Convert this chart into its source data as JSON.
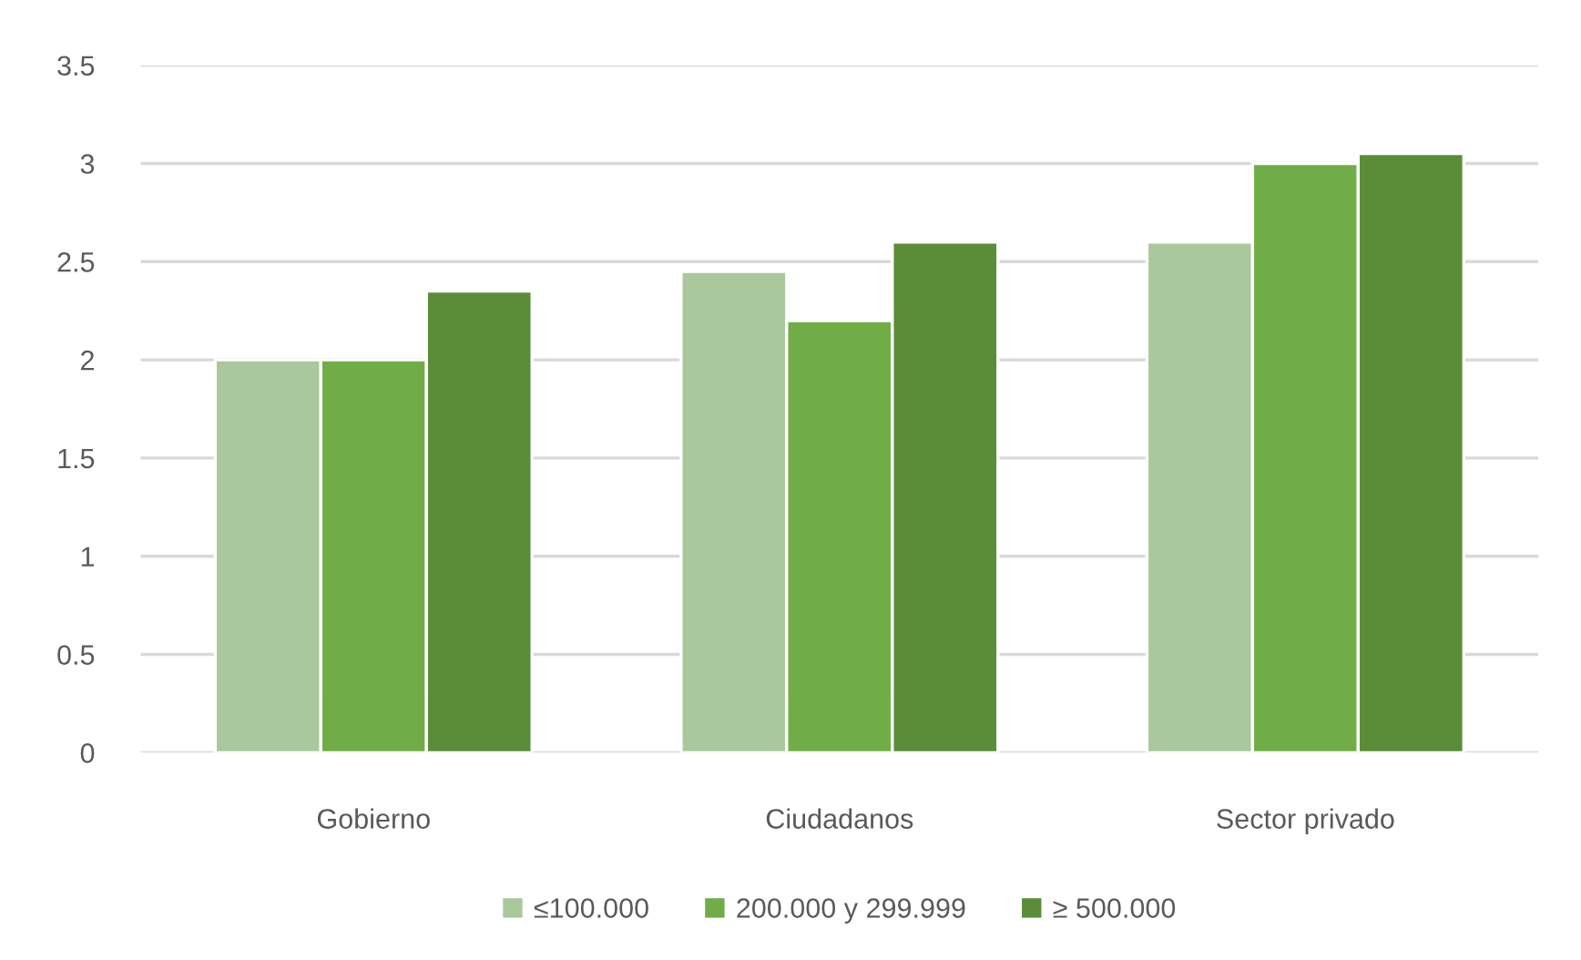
{
  "chart_data": {
    "type": "bar",
    "categories": [
      "Gobierno",
      "Ciudadanos",
      "Sector privado"
    ],
    "series": [
      {
        "name": "≤100.000",
        "color": "#a9c89b",
        "values": [
          2.0,
          2.45,
          2.6
        ]
      },
      {
        "name": "200.000 y 299.999",
        "color": "#70ad47",
        "values": [
          2.0,
          2.2,
          3.0
        ]
      },
      {
        "name": "≥ 500.000",
        "color": "#5b8d39",
        "values": [
          2.35,
          2.6,
          3.05
        ]
      }
    ],
    "ylim": [
      0,
      3.5
    ],
    "yticks": [
      0,
      0.5,
      1,
      1.5,
      2,
      2.5,
      3,
      3.5
    ],
    "grid": "y",
    "legend": "bottom"
  }
}
